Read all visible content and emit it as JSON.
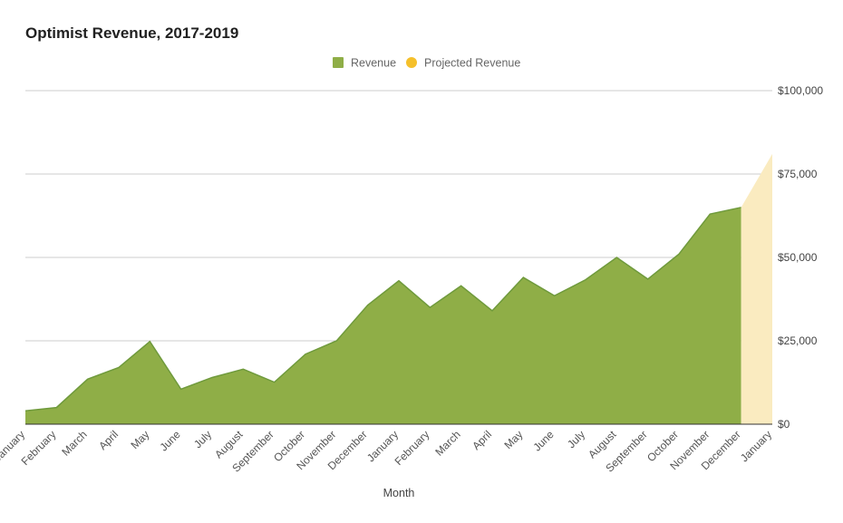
{
  "chart_data": {
    "type": "area",
    "title": "Optimist Revenue, 2017-2019",
    "xlabel": "Month",
    "ylabel": "",
    "ylim": [
      0,
      100000
    ],
    "y_ticks": [
      "$0",
      "$25,000",
      "$50,000",
      "$75,000",
      "$100,000"
    ],
    "y_axis_side": "right",
    "grid": true,
    "legend_position": "top",
    "categories": [
      "January",
      "February",
      "March",
      "April",
      "May",
      "June",
      "July",
      "August",
      "September",
      "October",
      "November",
      "December",
      "January",
      "February",
      "March",
      "April",
      "May",
      "June",
      "July",
      "August",
      "September",
      "October",
      "November",
      "December",
      "January"
    ],
    "series": [
      {
        "name": "Revenue",
        "color": "#8fae47",
        "values": [
          4000,
          5000,
          13500,
          17000,
          24800,
          10500,
          14000,
          16500,
          12600,
          21000,
          25000,
          35700,
          43000,
          35000,
          41500,
          34000,
          44000,
          38500,
          43300,
          50000,
          43500,
          51000,
          63000,
          65000,
          null
        ]
      },
      {
        "name": "Projected Revenue",
        "color": "#f5c02b",
        "fill": "#faebc0",
        "values": [
          null,
          null,
          null,
          null,
          null,
          null,
          null,
          null,
          null,
          null,
          null,
          null,
          null,
          null,
          null,
          null,
          null,
          null,
          null,
          null,
          null,
          null,
          null,
          65000,
          81000
        ]
      }
    ]
  }
}
